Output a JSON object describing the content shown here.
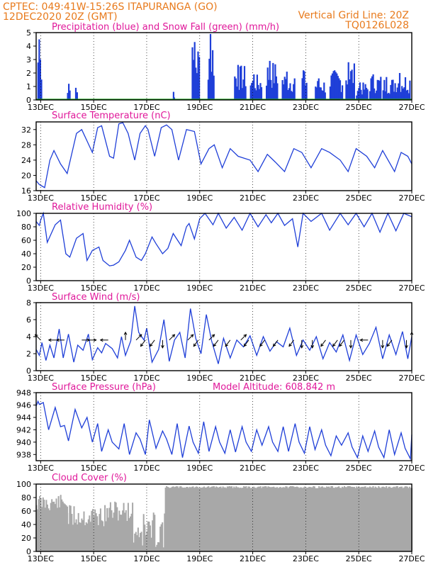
{
  "header": {
    "line1_left": "CPTEC:   049:41W-15:26S   ITAPURANGA (GO)",
    "line2_left": "12DEC2020 20Z (GMT)",
    "line1_right": "Vertical Grid Line: 20Z",
    "line2_right": "TQ0126L028"
  },
  "colors": {
    "header": "#e87a1c",
    "title": "#e0189a",
    "line": "#1f3fd8",
    "precip": "#1f3fd8",
    "snow": "#1aa01a",
    "cloud": "#a8a8a8"
  },
  "chart_data": [
    {
      "id": "precip",
      "type": "bar",
      "title": "Precipitation (blue) and Snow Fall (green) (mm/h)",
      "ylim": [
        0,
        5
      ],
      "yticks": [
        0,
        1,
        2,
        3,
        4,
        5
      ],
      "xticks": [
        "13DEC",
        "15DEC",
        "17DEC",
        "19DEC",
        "21DEC",
        "23DEC",
        "25DEC",
        "27DEC"
      ],
      "x_start_day": 12.83,
      "x_end_day": 27.0,
      "bursts": [
        {
          "start": 12.88,
          "end": 13.05,
          "peak": 4.5
        },
        {
          "start": 14.0,
          "end": 14.12,
          "peak": 1.2
        },
        {
          "start": 14.3,
          "end": 14.4,
          "peak": 0.9
        },
        {
          "start": 18.0,
          "end": 18.05,
          "peak": 0.6
        },
        {
          "start": 18.7,
          "end": 19.0,
          "peak": 4.3
        },
        {
          "start": 19.3,
          "end": 19.55,
          "peak": 4.9
        },
        {
          "start": 20.3,
          "end": 20.75,
          "peak": 2.6
        },
        {
          "start": 20.9,
          "end": 21.35,
          "peak": 1.9
        },
        {
          "start": 21.5,
          "end": 21.95,
          "peak": 2.9
        },
        {
          "start": 22.1,
          "end": 22.6,
          "peak": 2.1
        },
        {
          "start": 22.85,
          "end": 23.05,
          "peak": 2.2
        },
        {
          "start": 23.35,
          "end": 23.75,
          "peak": 1.6
        },
        {
          "start": 23.9,
          "end": 24.4,
          "peak": 2.2
        },
        {
          "start": 24.5,
          "end": 24.85,
          "peak": 2.8
        },
        {
          "start": 24.9,
          "end": 25.35,
          "peak": 1.3
        },
        {
          "start": 25.4,
          "end": 25.85,
          "peak": 1.9
        },
        {
          "start": 25.9,
          "end": 26.35,
          "peak": 1.7
        },
        {
          "start": 26.35,
          "end": 26.95,
          "peak": 2.0
        }
      ],
      "snow": 0
    },
    {
      "id": "temp",
      "type": "line",
      "title": "Surface Temperature (nC)",
      "ylim": [
        16,
        34
      ],
      "yticks": [
        16,
        20,
        24,
        28,
        32
      ],
      "xticks": [
        "13DEC",
        "15DEC",
        "17DEC",
        "19DEC",
        "21DEC",
        "23DEC",
        "25DEC",
        "27DEC"
      ],
      "x": [
        12.83,
        12.95,
        13.05,
        13.15,
        13.35,
        13.5,
        13.75,
        14.0,
        14.35,
        14.55,
        14.75,
        14.95,
        15.15,
        15.3,
        15.6,
        15.75,
        15.95,
        16.1,
        16.3,
        16.55,
        16.75,
        16.95,
        17.05,
        17.3,
        17.55,
        17.75,
        17.95,
        18.2,
        18.5,
        18.8,
        19.05,
        19.35,
        19.55,
        19.85,
        20.15,
        20.45,
        20.9,
        21.2,
        21.55,
        21.85,
        22.2,
        22.55,
        22.85,
        23.2,
        23.6,
        23.9,
        24.3,
        24.6,
        24.9,
        25.3,
        25.6,
        25.9,
        26.35,
        26.6,
        26.85,
        27.0
      ],
      "y": [
        18.6,
        17.6,
        17.2,
        16.8,
        24,
        26.5,
        23,
        20.5,
        31,
        32,
        29,
        26,
        32.5,
        33,
        25,
        24.5,
        33.5,
        33.8,
        31,
        24,
        31,
        33,
        32,
        25,
        32.5,
        33.2,
        32,
        24,
        32,
        31.5,
        23,
        27,
        28,
        22,
        27,
        25,
        24,
        21,
        25.5,
        23.5,
        21,
        27,
        26,
        22,
        27,
        26,
        24,
        21,
        27,
        25,
        22,
        26.5,
        21,
        26,
        25,
        23
      ]
    },
    {
      "id": "rh",
      "type": "line",
      "title": "Relative Humidity (%)",
      "ylim": [
        0,
        100
      ],
      "yticks": [
        0,
        20,
        40,
        60,
        80,
        100
      ],
      "xticks": [
        "13DEC",
        "15DEC",
        "17DEC",
        "19DEC",
        "21DEC",
        "23DEC",
        "25DEC",
        "27DEC"
      ],
      "x": [
        12.83,
        12.95,
        13.0,
        13.1,
        13.25,
        13.55,
        13.75,
        13.95,
        14.1,
        14.35,
        14.6,
        14.75,
        14.95,
        15.2,
        15.35,
        15.6,
        15.75,
        15.95,
        16.2,
        16.35,
        16.6,
        16.8,
        16.95,
        17.2,
        17.35,
        17.6,
        17.8,
        18.0,
        18.3,
        18.5,
        18.6,
        18.8,
        19.0,
        19.2,
        19.5,
        19.7,
        20.0,
        20.3,
        20.6,
        20.9,
        21.2,
        21.5,
        21.7,
        21.95,
        22.2,
        22.5,
        22.7,
        22.9,
        23.2,
        23.6,
        23.9,
        24.3,
        24.6,
        24.9,
        25.2,
        25.5,
        25.8,
        26.1,
        26.4,
        26.7,
        27.0
      ],
      "y": [
        88,
        82,
        90,
        100,
        57,
        83,
        90,
        40,
        35,
        63,
        70,
        30,
        45,
        50,
        30,
        22,
        23,
        28,
        45,
        60,
        35,
        30,
        40,
        65,
        55,
        40,
        48,
        70,
        52,
        80,
        85,
        62,
        92,
        100,
        83,
        100,
        78,
        94,
        75,
        100,
        80,
        98,
        86,
        100,
        82,
        92,
        50,
        100,
        88,
        100,
        75,
        100,
        83,
        100,
        80,
        100,
        72,
        100,
        74,
        100,
        95
      ]
    },
    {
      "id": "wind",
      "type": "line",
      "title": "Surface Wind (m/s)",
      "ylim": [
        0,
        8
      ],
      "yticks": [
        0,
        2,
        4,
        6,
        8
      ],
      "xticks": [
        "13DEC",
        "15DEC",
        "17DEC",
        "19DEC",
        "21DEC",
        "23DEC",
        "25DEC",
        "27DEC"
      ],
      "x": [
        12.83,
        12.95,
        13.05,
        13.2,
        13.35,
        13.5,
        13.7,
        13.85,
        14.05,
        14.25,
        14.4,
        14.6,
        14.8,
        14.95,
        15.15,
        15.3,
        15.45,
        15.7,
        15.9,
        16.05,
        16.2,
        16.4,
        16.55,
        16.7,
        16.9,
        17.0,
        17.2,
        17.45,
        17.65,
        17.85,
        18.05,
        18.25,
        18.45,
        18.65,
        18.85,
        19.05,
        19.25,
        19.45,
        19.7,
        19.9,
        20.15,
        20.4,
        20.65,
        20.9,
        21.15,
        21.4,
        21.65,
        21.9,
        22.15,
        22.4,
        22.65,
        22.9,
        23.15,
        23.4,
        23.65,
        23.9,
        24.15,
        24.4,
        24.65,
        24.9,
        25.15,
        25.4,
        25.65,
        25.9,
        26.15,
        26.4,
        26.65,
        26.85,
        27.0
      ],
      "y": [
        2.5,
        1.8,
        3.3,
        1.2,
        3.0,
        1.5,
        4.9,
        1.5,
        4.3,
        1.0,
        3.0,
        2.4,
        4.3,
        1.3,
        2.7,
        2.1,
        3.2,
        2.6,
        1.5,
        4.0,
        1.8,
        3.5,
        7.6,
        4.5,
        3.6,
        5.0,
        1.0,
        2.5,
        6.0,
        1.1,
        3.6,
        4.5,
        1.5,
        7.3,
        3.8,
        2.0,
        6.6,
        3.5,
        0.8,
        3.8,
        1.5,
        3.6,
        2.8,
        4.1,
        1.8,
        4.0,
        2.3,
        3.4,
        2.8,
        5.0,
        1.8,
        3.6,
        2.4,
        4.0,
        1.4,
        3.3,
        2.2,
        4.2,
        1.2,
        4.2,
        1.9,
        3.2,
        5.1,
        1.4,
        4.2,
        1.9,
        4.6,
        1.4,
        4.0
      ],
      "arrows": [
        {
          "day": 13.0,
          "dir": "NW"
        },
        {
          "day": 13.6,
          "dir": "W"
        },
        {
          "day": 13.9,
          "dir": "W"
        },
        {
          "day": 14.55,
          "dir": "E"
        },
        {
          "day": 14.8,
          "dir": "E"
        },
        {
          "day": 15.55,
          "dir": "W"
        },
        {
          "day": 16.2,
          "dir": "N"
        },
        {
          "day": 16.6,
          "dir": "NE"
        },
        {
          "day": 16.95,
          "dir": "SW"
        },
        {
          "day": 17.3,
          "dir": "SW"
        },
        {
          "day": 17.6,
          "dir": "S"
        },
        {
          "day": 17.85,
          "dir": "NE"
        },
        {
          "day": 18.55,
          "dir": "NE"
        },
        {
          "day": 18.95,
          "dir": "SW"
        },
        {
          "day": 19.35,
          "dir": "NE"
        },
        {
          "day": 19.7,
          "dir": "SW"
        },
        {
          "day": 20.15,
          "dir": "SW"
        },
        {
          "day": 20.55,
          "dir": "NE"
        },
        {
          "day": 20.85,
          "dir": "SW"
        },
        {
          "day": 21.45,
          "dir": "SW"
        },
        {
          "day": 21.95,
          "dir": "SW"
        },
        {
          "day": 22.55,
          "dir": "SW"
        },
        {
          "day": 22.85,
          "dir": "S"
        },
        {
          "day": 23.25,
          "dir": "S"
        },
        {
          "day": 23.75,
          "dir": "SW"
        },
        {
          "day": 24.2,
          "dir": "SW"
        },
        {
          "day": 24.45,
          "dir": "SW"
        },
        {
          "day": 24.7,
          "dir": "S"
        },
        {
          "day": 25.35,
          "dir": "W"
        },
        {
          "day": 25.9,
          "dir": "S"
        },
        {
          "day": 26.25,
          "dir": "SW"
        },
        {
          "day": 26.8,
          "dir": "S"
        },
        {
          "day": 27.0,
          "dir": "N"
        }
      ]
    },
    {
      "id": "pressure",
      "type": "line",
      "title": "Surface Pressure (hPa)",
      "annotation": "Model Altitude: 608.842  m",
      "ylim": [
        937,
        948
      ],
      "yticks": [
        938,
        940,
        942,
        944,
        946,
        948
      ],
      "xticks": [
        "13DEC",
        "15DEC",
        "17DEC",
        "19DEC",
        "21DEC",
        "23DEC",
        "25DEC",
        "27DEC"
      ],
      "x": [
        12.83,
        12.9,
        12.95,
        13.1,
        13.3,
        13.55,
        13.75,
        13.9,
        14.05,
        14.3,
        14.55,
        14.75,
        14.95,
        15.15,
        15.3,
        15.55,
        15.7,
        15.95,
        16.15,
        16.35,
        16.6,
        16.75,
        16.95,
        17.1,
        17.35,
        17.6,
        17.75,
        17.95,
        18.15,
        18.35,
        18.6,
        18.75,
        18.95,
        19.15,
        19.35,
        19.6,
        19.75,
        19.95,
        20.15,
        20.35,
        20.6,
        20.75,
        20.95,
        21.15,
        21.35,
        21.6,
        21.75,
        21.95,
        22.15,
        22.35,
        22.6,
        22.75,
        22.95,
        23.15,
        23.35,
        23.6,
        23.75,
        23.95,
        24.15,
        24.35,
        24.6,
        24.75,
        24.95,
        25.15,
        25.35,
        25.6,
        25.75,
        25.95,
        26.15,
        26.35,
        26.6,
        26.75,
        26.95,
        27.0
      ],
      "y": [
        945.8,
        946.6,
        946.1,
        946.4,
        942.0,
        945.6,
        942.5,
        942.7,
        940.2,
        945.3,
        942.3,
        944.0,
        940.0,
        943.0,
        938.5,
        942.0,
        940.0,
        938.9,
        943.0,
        938.0,
        941.5,
        940.5,
        938.0,
        943.6,
        939.0,
        941.8,
        940.5,
        938.0,
        943.0,
        937.5,
        942.6,
        940.0,
        938.2,
        943.3,
        938.5,
        942.5,
        940.0,
        938.2,
        942.0,
        938.4,
        942.5,
        940.0,
        938.5,
        942.0,
        939.5,
        942.5,
        940.0,
        938.5,
        942.5,
        938.5,
        943.0,
        940.0,
        938.2,
        942.5,
        938.8,
        942.0,
        939.5,
        937.8,
        941.0,
        939.5,
        941.5,
        939.2,
        937.5,
        941.0,
        938.5,
        941.8,
        939.2,
        937.5,
        942.0,
        938.0,
        941.5,
        939.0,
        937.3,
        941.2
      ]
    },
    {
      "id": "cloud",
      "type": "area",
      "title": "Cloud Cover (%)",
      "ylim": [
        0,
        100
      ],
      "yticks": [
        0,
        20,
        40,
        60,
        80,
        100
      ],
      "xticks": [
        "13DEC",
        "15DEC",
        "17DEC",
        "19DEC",
        "21DEC",
        "23DEC",
        "25DEC",
        "27DEC"
      ],
      "segments": [
        {
          "start": 12.83,
          "end": 14.0,
          "base": 85,
          "jitter": 25
        },
        {
          "start": 14.0,
          "end": 15.5,
          "base": 70,
          "jitter": 35
        },
        {
          "start": 15.5,
          "end": 16.5,
          "base": 75,
          "jitter": 30
        },
        {
          "start": 16.5,
          "end": 17.7,
          "base": 60,
          "jitter": 55
        },
        {
          "start": 17.7,
          "end": 27.0,
          "base": 97,
          "jitter": 3
        }
      ]
    }
  ]
}
